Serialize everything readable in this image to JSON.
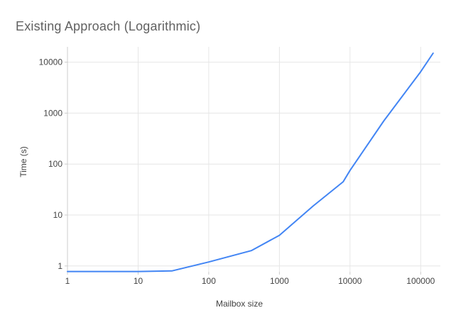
{
  "title": "Existing Approach (Logarithmic)",
  "colors": {
    "background": "#ffffff",
    "title_text": "#616161",
    "axis_title_text": "#424242",
    "tick_label_text": "#444444",
    "gridline": "#e6e6e6",
    "axis_line": "#cccccc",
    "series_line": "#4285f4"
  },
  "chart_data": {
    "type": "line",
    "title": "Existing Approach (Logarithmic)",
    "xlabel": "Mailbox size",
    "ylabel": "Time (s)",
    "x_scale": "log",
    "y_scale": "log",
    "grid": true,
    "legend_position": "none",
    "xlim": [
      1,
      190000
    ],
    "ylim": [
      0.77,
      20000
    ],
    "x_ticks": [
      1,
      10,
      100,
      1000,
      10000,
      100000
    ],
    "x_tick_labels": [
      "1",
      "10",
      "100",
      "1000",
      "10000",
      "100000"
    ],
    "y_ticks": [
      1,
      10,
      100,
      1000,
      10000
    ],
    "y_tick_labels": [
      "1",
      "10",
      "100",
      "1000",
      "10000"
    ],
    "series": [
      {
        "name": "Time (s)",
        "color": "#4285f4",
        "points_note": "values estimated from pixels on log-log axes",
        "points": [
          [
            1,
            0.78
          ],
          [
            10,
            0.78
          ],
          [
            30,
            0.8
          ],
          [
            100,
            1.2
          ],
          [
            400,
            2.0
          ],
          [
            1000,
            4.0
          ],
          [
            3000,
            15
          ],
          [
            8000,
            45
          ],
          [
            10000,
            75
          ],
          [
            30000,
            700
          ],
          [
            100000,
            6500
          ],
          [
            150000,
            15000
          ]
        ]
      }
    ]
  }
}
